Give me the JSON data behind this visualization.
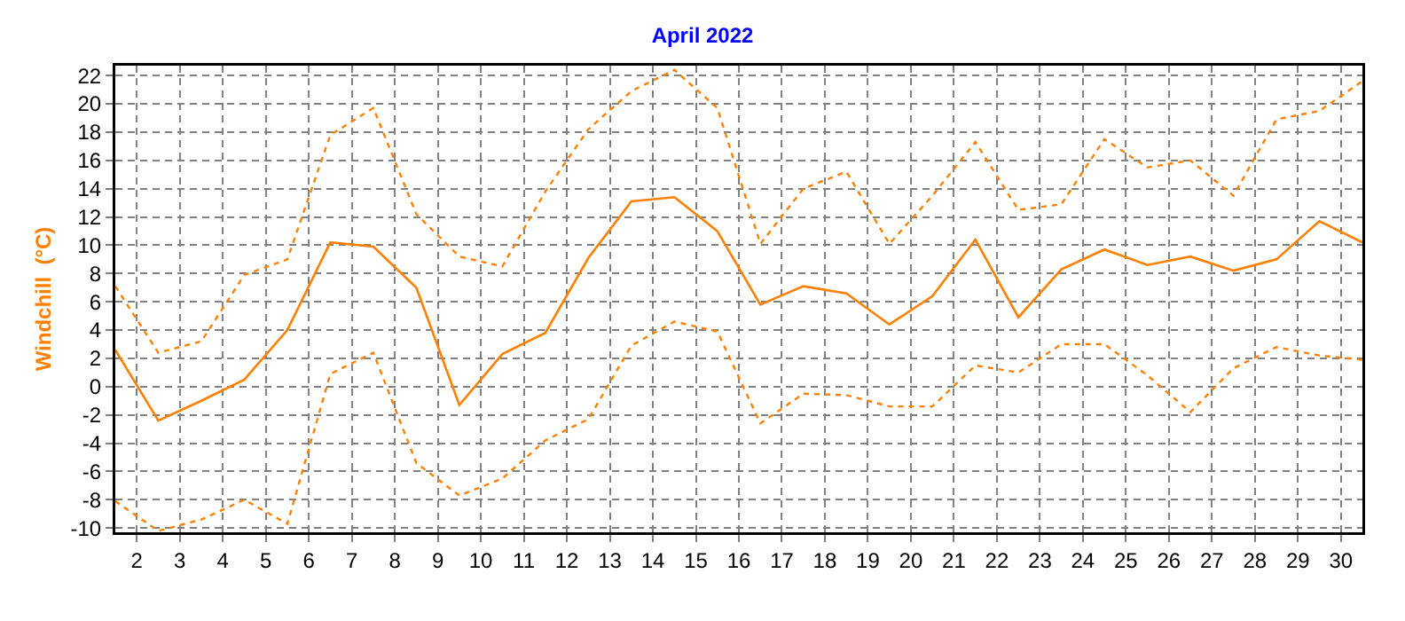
{
  "chart_data": {
    "type": "line",
    "title": "April 2022",
    "ylabel": "Windchill  (°C)",
    "x": [
      1.5,
      2.5,
      3.5,
      4.5,
      5.5,
      6.5,
      7.5,
      8.5,
      9.5,
      10.5,
      11.5,
      12.5,
      13.5,
      14.5,
      15.5,
      16.5,
      17.5,
      18.5,
      19.5,
      20.5,
      21.5,
      22.5,
      23.5,
      24.5,
      25.5,
      26.5,
      27.5,
      28.5,
      29.5,
      30.5
    ],
    "series": [
      {
        "color": "#ff8000",
        "line_style": "dotted",
        "values": [
          7.1,
          2.4,
          3.2,
          7.9,
          9.0,
          17.8,
          19.7,
          12.2,
          9.2,
          8.5,
          13.8,
          18.2,
          20.9,
          22.4,
          19.7,
          10.1,
          14.0,
          15.2,
          10.1,
          13.5,
          17.3,
          12.5,
          12.9,
          17.5,
          15.5,
          16.0,
          13.5,
          18.9,
          19.5,
          21.6
        ]
      },
      {
        "color": "#ff8000",
        "line_style": "solid",
        "values": [
          2.6,
          -2.4,
          -1.0,
          0.5,
          4.0,
          10.2,
          9.9,
          7.0,
          -1.3,
          2.3,
          3.8,
          9.1,
          13.1,
          13.4,
          11.0,
          5.8,
          7.1,
          6.6,
          4.4,
          6.4,
          10.4,
          4.9,
          8.3,
          9.7,
          8.6,
          9.2,
          8.2,
          9.0,
          11.7,
          10.2
        ]
      },
      {
        "color": "#ff8000",
        "line_style": "dotted",
        "values": [
          -8.1,
          -10.2,
          -9.4,
          -8.0,
          -9.7,
          0.9,
          2.4,
          -5.4,
          -7.7,
          -6.5,
          -3.8,
          -2.3,
          2.9,
          4.6,
          3.9,
          -2.6,
          -0.5,
          -0.6,
          -1.4,
          -1.4,
          1.5,
          1.0,
          3.0,
          3.0,
          0.8,
          -1.8,
          1.3,
          2.8,
          2.2,
          1.9
        ]
      }
    ],
    "xlim": [
      1.5,
      30.5
    ],
    "xticks": [
      2,
      3,
      4,
      5,
      6,
      7,
      8,
      9,
      10,
      11,
      12,
      13,
      14,
      15,
      16,
      17,
      18,
      19,
      20,
      21,
      22,
      23,
      24,
      25,
      26,
      27,
      28,
      29,
      30
    ],
    "ylim": [
      -10.3,
      22.7
    ],
    "yticks": [
      -10,
      -8,
      -6,
      -4,
      -2,
      0,
      2,
      4,
      6,
      8,
      10,
      12,
      14,
      16,
      18,
      20,
      22
    ],
    "grid": true,
    "marker": "none"
  }
}
